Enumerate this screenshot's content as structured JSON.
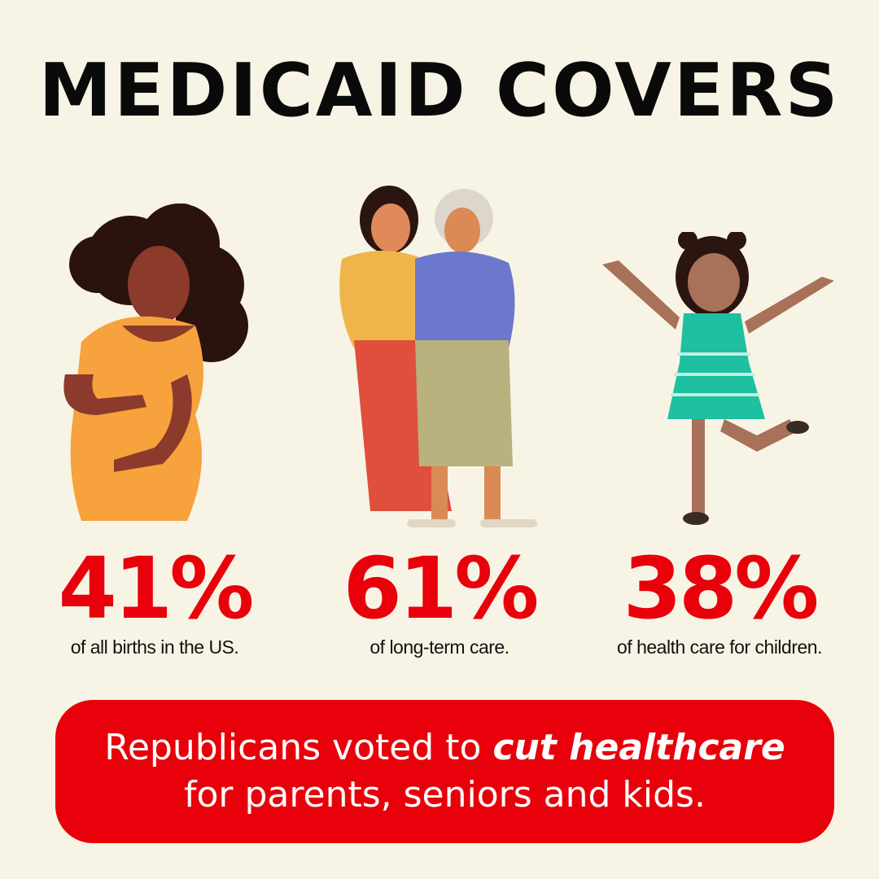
{
  "title": "MEDICAID COVERS",
  "stats": [
    {
      "value": "41%",
      "caption": "of all births in the US."
    },
    {
      "value": "61%",
      "caption": "of long-term care."
    },
    {
      "value": "38%",
      "caption": "of health care for children."
    }
  ],
  "banner": {
    "line1_pre": "Republicans voted to ",
    "line1_emphasis": "cut healthcare",
    "line2": "for parents, seniors and kids."
  },
  "colors": {
    "background": "#f8f4e5",
    "accent": "#e8000b",
    "text": "#0a0a0a"
  }
}
